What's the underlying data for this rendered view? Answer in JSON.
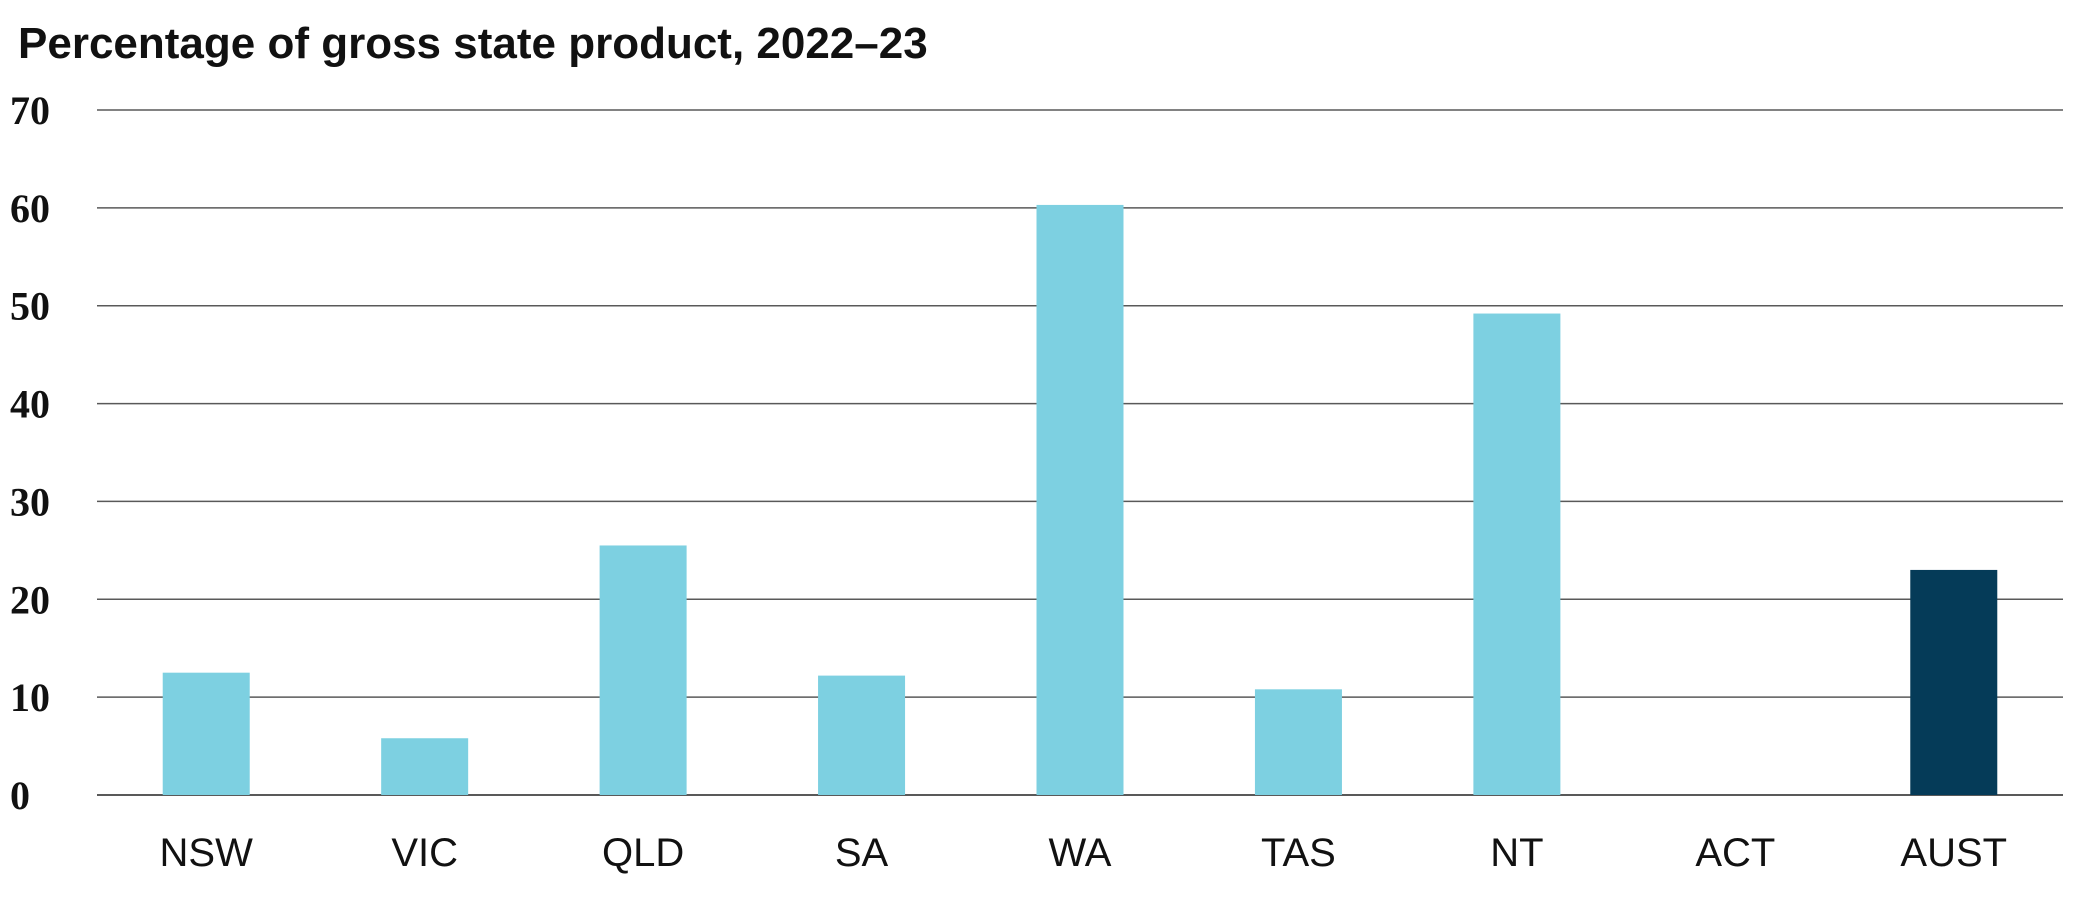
{
  "chart_data": {
    "type": "bar",
    "title": "Percentage of gross state product, 2022–23",
    "xlabel": "",
    "ylabel": "",
    "categories": [
      "NSW",
      "VIC",
      "QLD",
      "SA",
      "WA",
      "TAS",
      "NT",
      "ACT",
      "AUST"
    ],
    "values": [
      12.5,
      5.8,
      25.5,
      12.2,
      60.3,
      10.8,
      49.2,
      0,
      23.0
    ],
    "ylim": [
      0,
      70
    ],
    "yticks": [
      "0",
      "10",
      "20",
      "30",
      "40",
      "50",
      "60",
      "70"
    ],
    "grid": true,
    "legend": "none",
    "colors": {
      "bar": "#7dd0e1",
      "highlight": "#053b58",
      "highlight_category": "AUST",
      "grid": "#595959"
    }
  }
}
